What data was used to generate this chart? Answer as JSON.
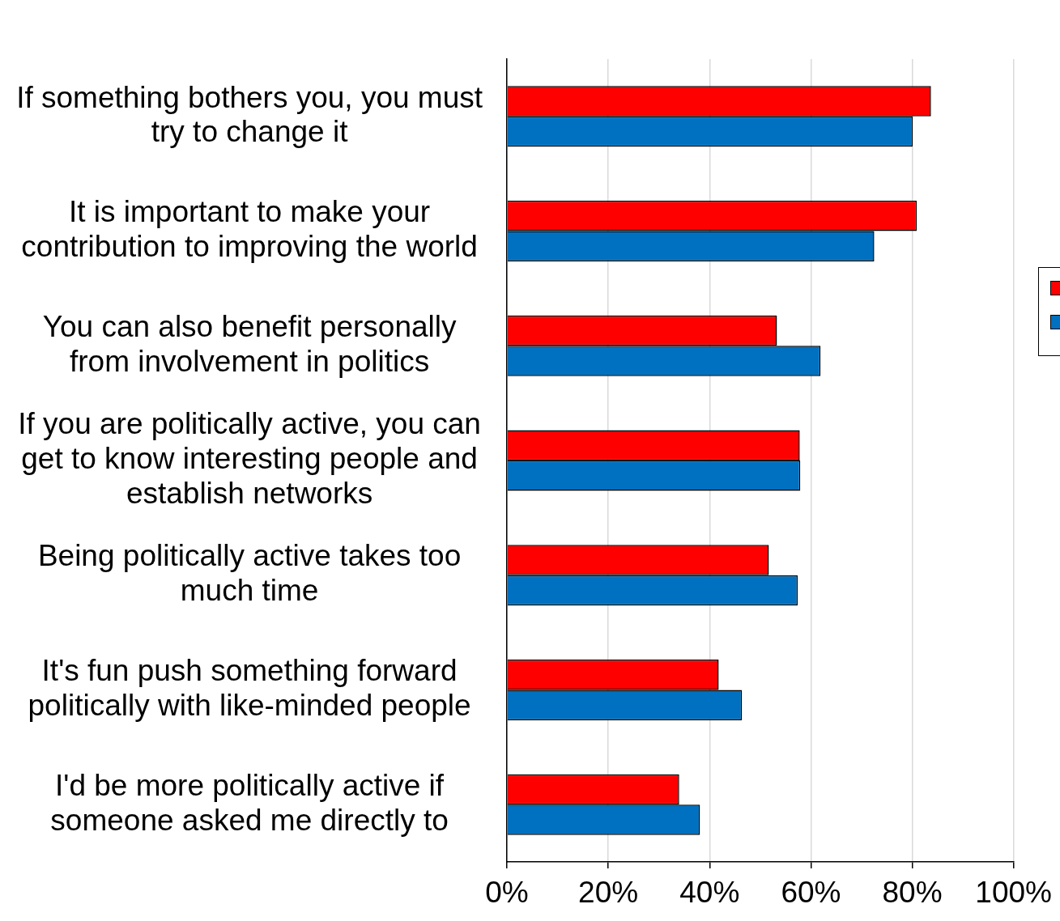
{
  "chart_data": {
    "type": "bar",
    "orientation": "horizontal",
    "categories": [
      "If something bothers you, you must try to change it",
      "It is important to make your contribution to improving the world",
      "You can also benefit personally from involvement in politics",
      "If you are politically active, you can get to know interesting people and establish networks",
      "Being politically active takes too much time",
      "It's fun push something forward politically with like-minded people",
      "I'd be more politically active if someone asked me directly to"
    ],
    "series": [
      {
        "color": "#ff0000",
        "values": [
          83.7,
          80.9,
          53.3,
          57.8,
          51.7,
          41.8,
          34.0
        ]
      },
      {
        "color": "#0070c0",
        "values": [
          80.1,
          72.5,
          61.9,
          57.9,
          57.4,
          46.4,
          38.1
        ]
      }
    ],
    "xlim": [
      0,
      100
    ],
    "xticks": [
      {
        "value": 0,
        "label": "0%"
      },
      {
        "value": 20,
        "label": "20%"
      },
      {
        "value": 40,
        "label": "40%"
      },
      {
        "value": 60,
        "label": "60%"
      },
      {
        "value": 80,
        "label": "80%"
      },
      {
        "value": 100,
        "label": "100%"
      }
    ],
    "grid": "x"
  }
}
